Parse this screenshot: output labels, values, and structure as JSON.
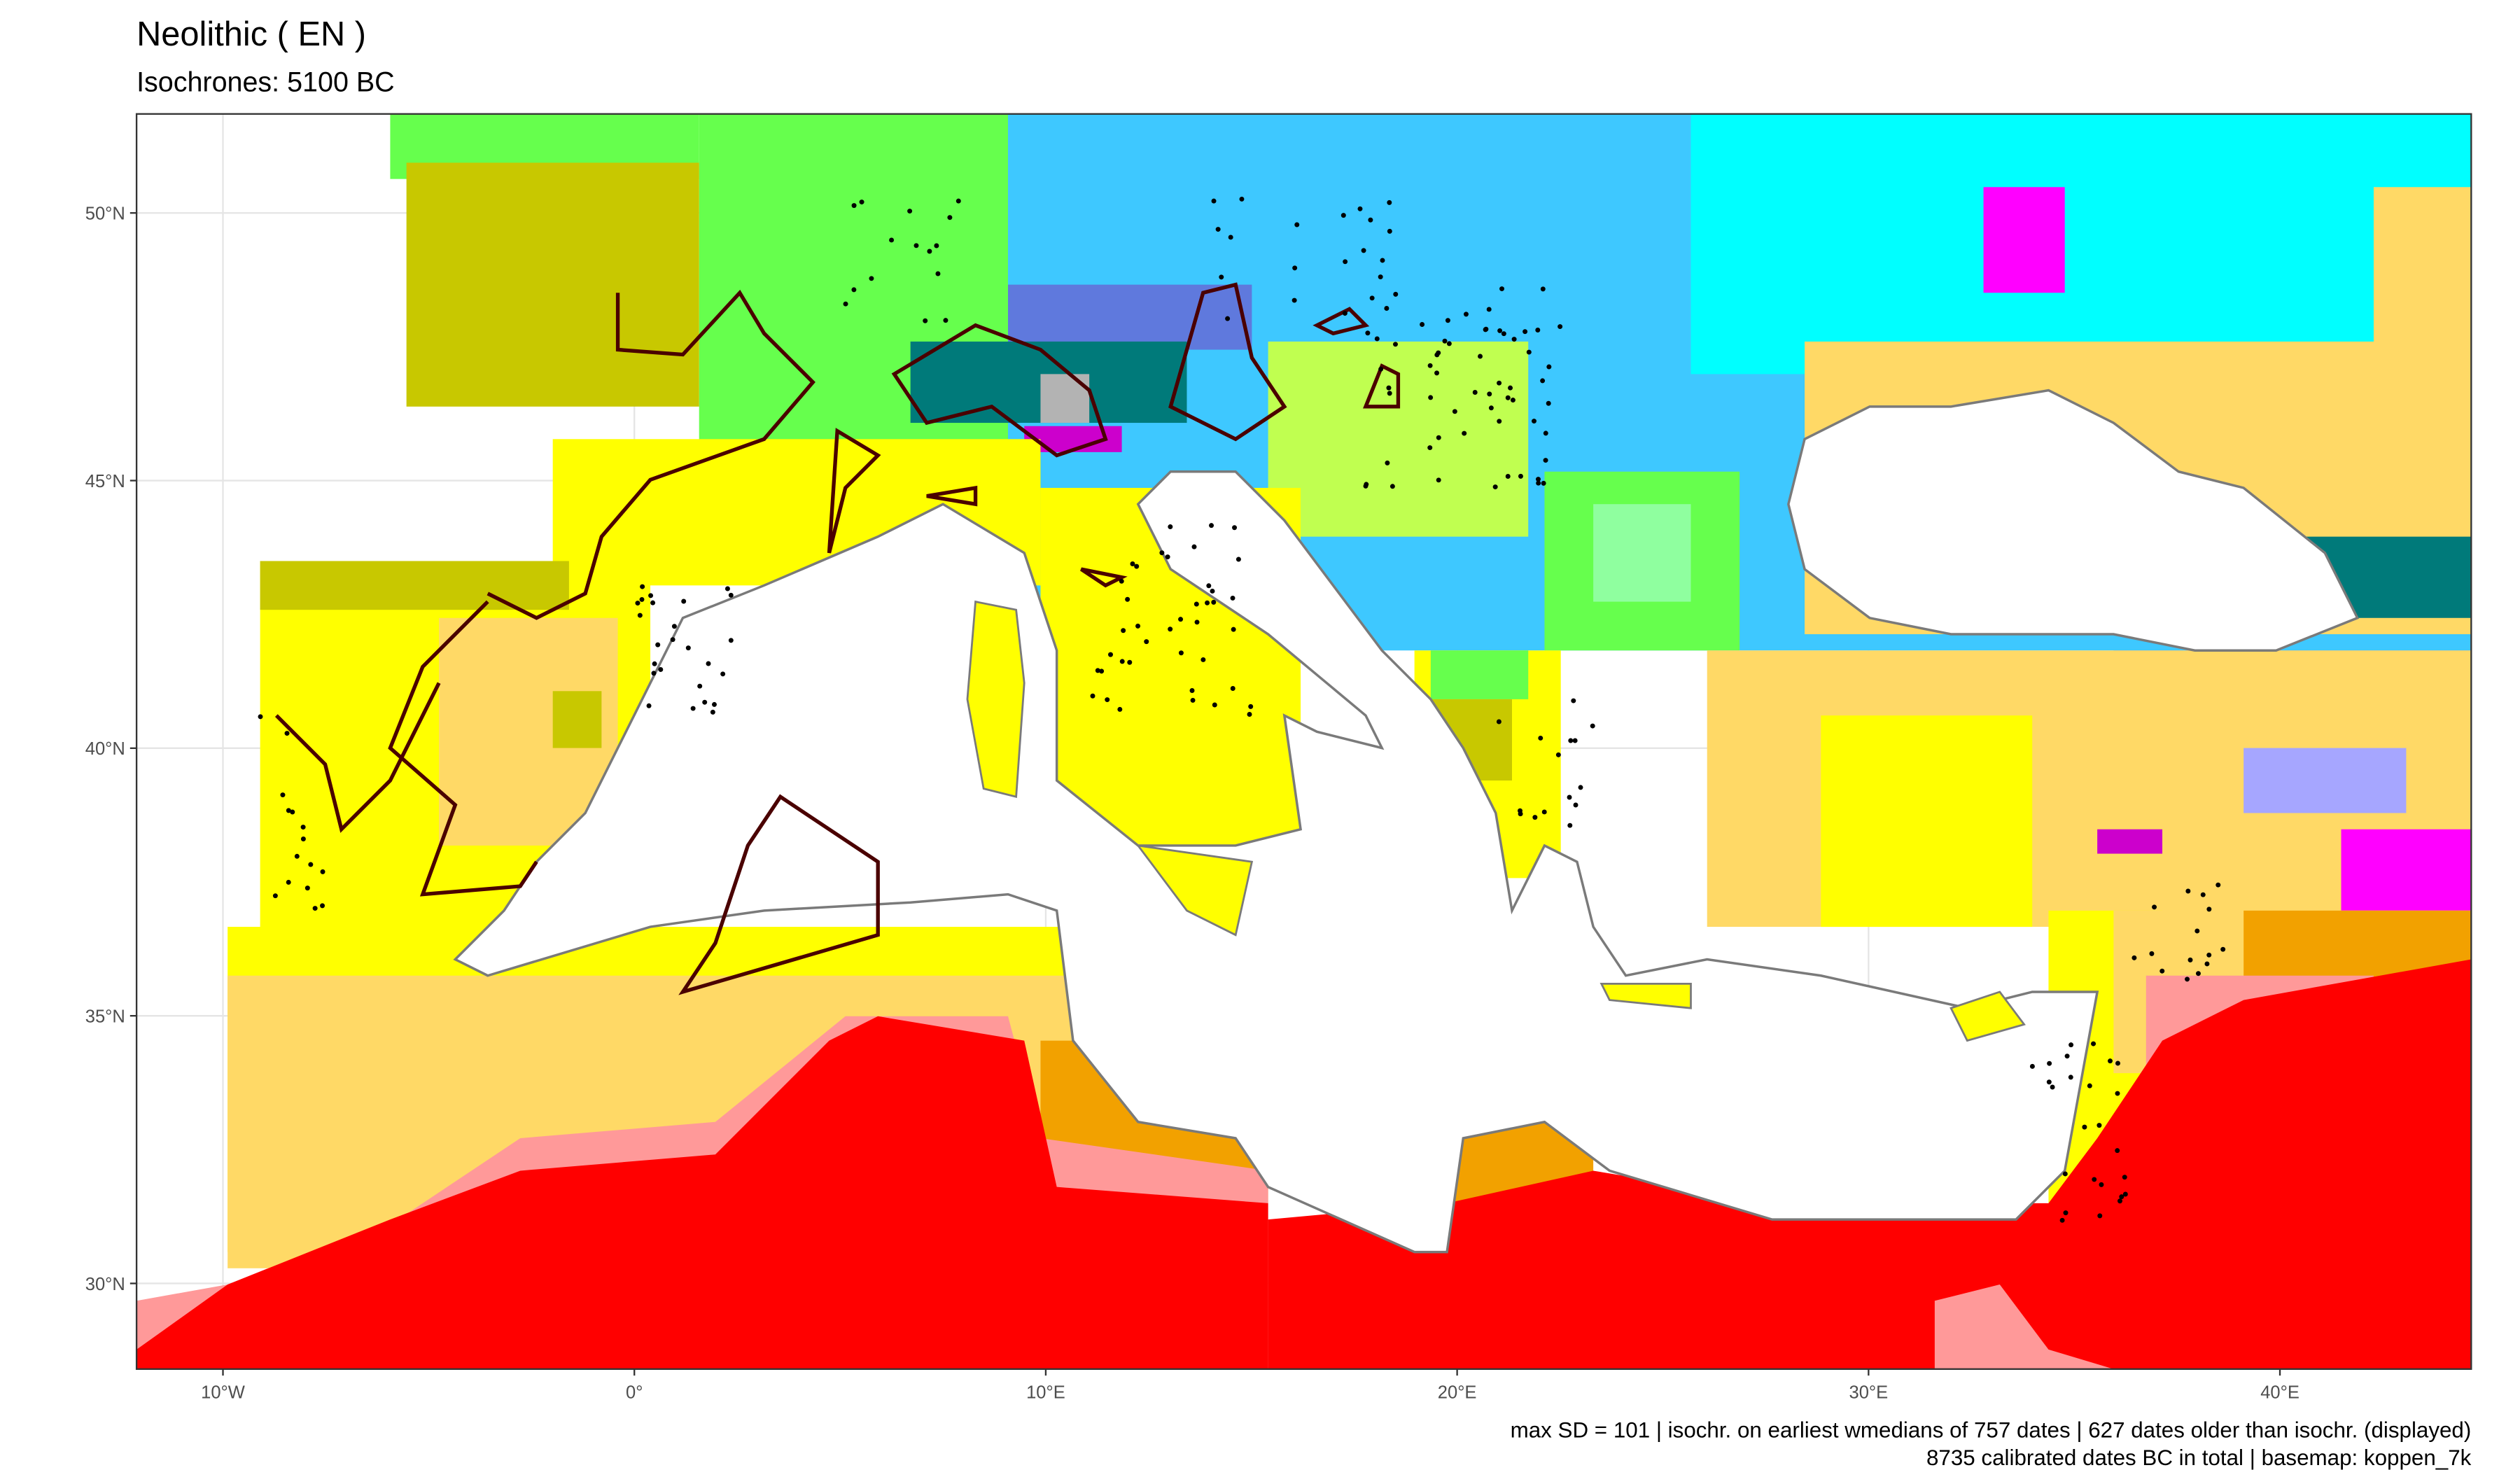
{
  "map": {
    "title": "Neolithic ( EN )",
    "subtitle": "Isochrones: 5100 BC",
    "xlim": [
      -12.1,
      44.65
    ],
    "ylim": [
      28.4,
      51.85
    ],
    "xticks": [
      {
        "value": -10,
        "label": "10°W"
      },
      {
        "value": 0,
        "label": "0°"
      },
      {
        "value": 10,
        "label": "10°E"
      },
      {
        "value": 20,
        "label": "20°E"
      },
      {
        "value": 30,
        "label": "30°E"
      },
      {
        "value": 40,
        "label": "40°E"
      }
    ],
    "yticks": [
      {
        "value": 30,
        "label": "30°N"
      },
      {
        "value": 35,
        "label": "35°N"
      },
      {
        "value": 40,
        "label": "40°N"
      },
      {
        "value": 45,
        "label": "45°N"
      },
      {
        "value": 50,
        "label": "50°N"
      }
    ],
    "grid": true,
    "caption": [
      "max SD = 101 | isochr. on earliest wmedians of 757 dates | 627 dates older than isochr. (displayed)",
      "8735 calibrated dates BC in total | basemap: koppen_7k"
    ]
  }
}
